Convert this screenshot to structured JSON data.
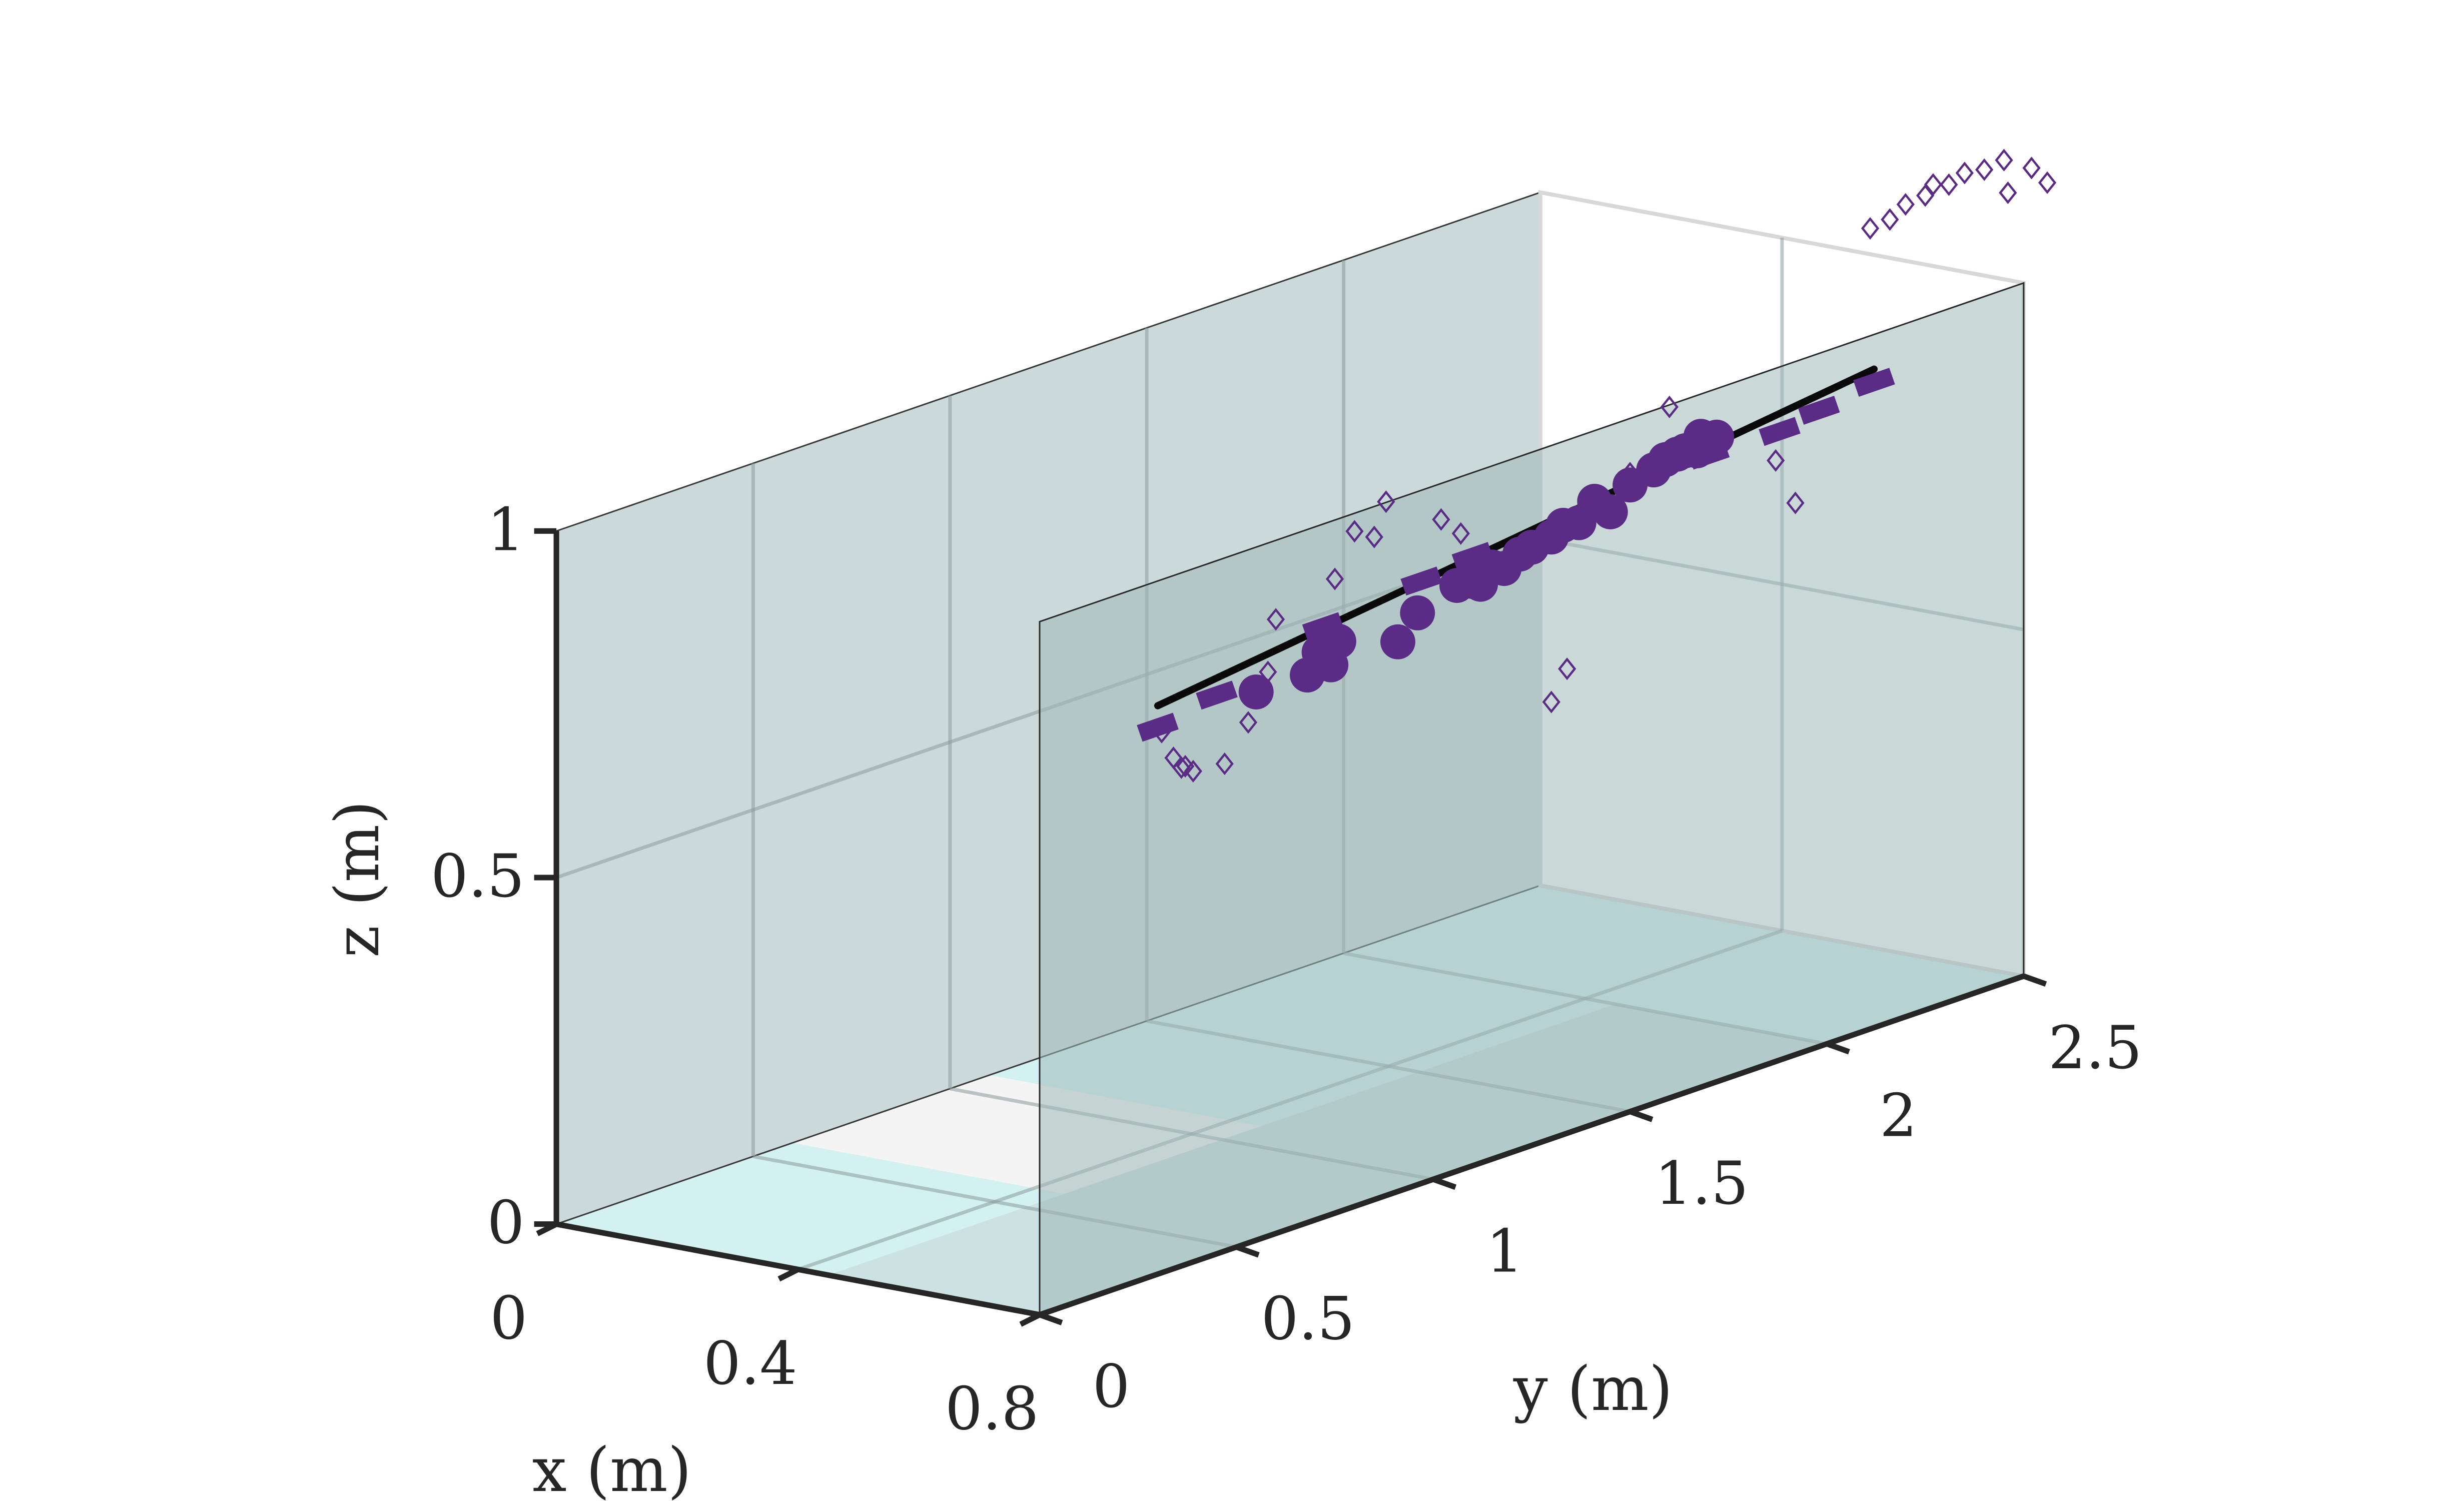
{
  "chart_data": {
    "type": "scatter3d",
    "title": "",
    "xlabel": "x (m)",
    "ylabel": "y (m)",
    "zlabel": "z (m)",
    "xlim": [
      0,
      0.8
    ],
    "ylim": [
      0,
      2.5
    ],
    "zlim": [
      0,
      1
    ],
    "x_ticks": [
      0,
      0.4,
      0.8
    ],
    "y_ticks": [
      0,
      0.5,
      1,
      1.5,
      2,
      2.5
    ],
    "z_ticks": [
      0,
      0.5,
      1
    ],
    "x_tick_labels": [
      "0",
      "0.4",
      "0.8"
    ],
    "y_tick_labels": [
      "0",
      "0.5",
      "1",
      "1.5",
      "2",
      "2.5"
    ],
    "z_tick_labels": [
      "0",
      "0.5",
      "1"
    ],
    "grid": true,
    "colors": {
      "marker": "#5b2c86",
      "line": "#0a0a0a",
      "plane_back": "#c5d4d5",
      "plane_mid": "#9fb8b8",
      "floor_cyan": "#ccefef",
      "floor_white": "#f4f4f4",
      "axis": "#262626"
    },
    "series": [
      {
        "marker": "line",
        "x": [
          0.8,
          0.8
        ],
        "y": [
          0.3,
          2.12
        ],
        "z": [
          0.82,
          0.95
        ]
      },
      {
        "marker": "dash",
        "x": [
          0.8,
          0.8,
          0.8,
          0.8,
          0.8,
          0.8,
          0.8,
          0.8,
          0.8
        ],
        "y": [
          0.3,
          0.45,
          0.72,
          0.97,
          1.1,
          1.7,
          1.88,
          1.98,
          2.12
        ],
        "z": [
          0.789,
          0.806,
          0.852,
          0.869,
          0.879,
          0.908,
          0.907,
          0.918,
          0.931
        ]
      },
      {
        "marker": "circle",
        "x": [
          0.8,
          0.8,
          0.8,
          0.8,
          0.8,
          0.8,
          0.8,
          0.8,
          0.8,
          0.8,
          0.8,
          0.8,
          0.8,
          0.8,
          0.8,
          0.8,
          0.8,
          0.8,
          0.8,
          0.8,
          0.8,
          0.8,
          0.8,
          0.8,
          0.8,
          0.8,
          0.8
        ],
        "y": [
          0.55,
          0.68,
          0.71,
          0.74,
          0.76,
          0.91,
          0.96,
          1.06,
          1.1,
          1.12,
          1.15,
          1.18,
          1.22,
          1.25,
          1.3,
          1.33,
          1.37,
          1.41,
          1.45,
          1.5,
          1.56,
          1.59,
          1.62,
          1.64,
          1.67,
          1.68,
          1.72
        ],
        "z": [
          0.791,
          0.79,
          0.817,
          0.793,
          0.823,
          0.793,
          0.825,
          0.845,
          0.843,
          0.835,
          0.854,
          0.846,
          0.859,
          0.863,
          0.868,
          0.879,
          0.875,
          0.898,
          0.875,
          0.904,
          0.914,
          0.923,
          0.925,
          0.926,
          0.92,
          0.939,
          0.93
        ]
      },
      {
        "marker": "diamond",
        "x": [
          0.8,
          0.8,
          0.8,
          0.8,
          0.8,
          0.8,
          0.8,
          0.8,
          0.8,
          0.8,
          0.8,
          0.8,
          0.8,
          0.8,
          0.8,
          0.8,
          0.8,
          0.8,
          0.8,
          0.8,
          0.8,
          0.8,
          0.8,
          0.8,
          0.8,
          0.8,
          0.8,
          0.8,
          0.8,
          0.8,
          0.8,
          0.8,
          0.8
        ],
        "y": [
          0.31,
          0.34,
          0.36,
          0.37,
          0.39,
          0.47,
          0.53,
          0.58,
          0.6,
          0.75,
          0.8,
          0.85,
          0.88,
          1.02,
          1.07,
          1.3,
          1.34,
          1.5,
          1.6,
          1.87,
          1.92,
          2.11,
          2.16,
          2.2,
          2.25,
          2.27,
          2.31,
          2.35,
          2.4,
          2.45,
          2.52,
          2.46,
          2.56
        ],
        "z": [
          0.78,
          0.737,
          0.719,
          0.719,
          0.708,
          0.703,
          0.751,
          0.814,
          0.886,
          0.915,
          0.974,
          0.956,
          1.001,
          0.948,
          0.918,
          0.63,
          0.67,
          0.921,
          0.997,
          0.867,
          0.796,
          1.155,
          1.158,
          1.172,
          1.175,
          1.187,
          1.179,
          1.188,
          1.183,
          1.187,
          1.162,
          1.138,
          1.133
        ]
      }
    ]
  }
}
